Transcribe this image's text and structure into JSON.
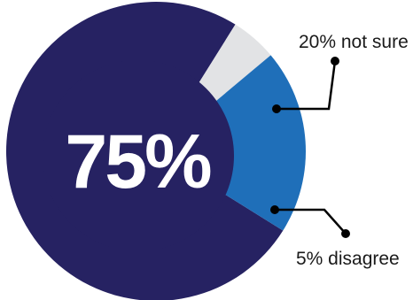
{
  "chart_data": {
    "type": "pie",
    "title": "",
    "slices": [
      {
        "label": "75%",
        "value": 75,
        "color": "#262262"
      },
      {
        "label": "20% not sure",
        "value": 20,
        "color": "#1f6fb9"
      },
      {
        "label": "5% disagree",
        "value": 5,
        "color": "#e2e3e5"
      }
    ],
    "center_label": "75%",
    "annotations": [
      {
        "text": "20% not sure"
      },
      {
        "text": "5% disagree"
      }
    ],
    "legend": "none",
    "grid": false
  }
}
